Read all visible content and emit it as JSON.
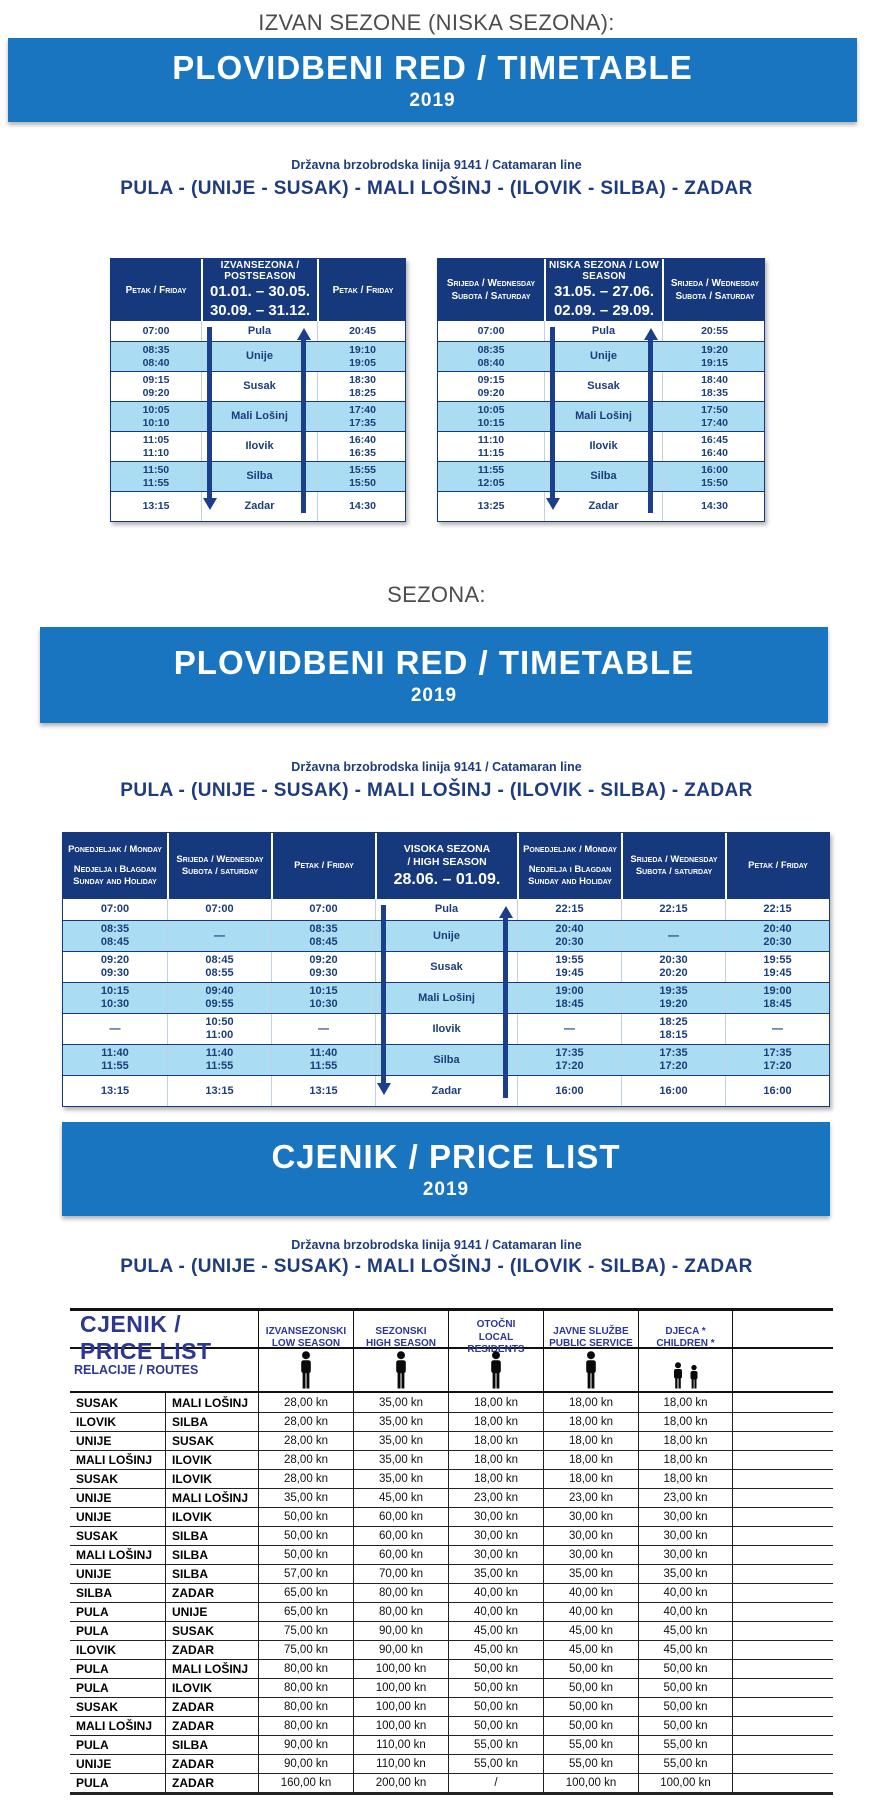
{
  "headings": {
    "offseason": "IZVAN SEZONE (NISKA SEZONA):",
    "season": "SEZONA:"
  },
  "banners": {
    "timetable": "PLOVIDBENI RED / TIMETABLE",
    "pricelist": "CJENIK / PRICE LIST",
    "year": "2019"
  },
  "line": {
    "subtitle": "Državna brzobrodska linija 9141 / Catamaran line",
    "route": "PULA - (UNIJE - SUSAK) - MALI LOŠINJ - (ILOVIK - SILBA) - ZADAR"
  },
  "colors": {
    "banner_blue": "#1a75c0",
    "header_navy": "#16387c",
    "row_lightblue": "#aadcf2",
    "text_navy": "#1b3d7a",
    "pricelist_navy": "#2c3792"
  },
  "offseason_tables": [
    {
      "day_lines": [
        "Petak / Friday"
      ],
      "season_title": "IZVANSEZONA / POSTSEASON",
      "season_dates": [
        "01.01. – 30.05.",
        "30.09. – 31.12."
      ],
      "rows": [
        {
          "dep": [
            "07:00"
          ],
          "station": "Pula",
          "ret": [
            "20:45"
          ]
        },
        {
          "dep": [
            "08:35",
            "08:40"
          ],
          "station": "Unije",
          "ret": [
            "19:10",
            "19:05"
          ]
        },
        {
          "dep": [
            "09:15",
            "09:20"
          ],
          "station": "Susak",
          "ret": [
            "18:30",
            "18:25"
          ]
        },
        {
          "dep": [
            "10:05",
            "10:10"
          ],
          "station": "Mali Lošinj",
          "ret": [
            "17:40",
            "17:35"
          ]
        },
        {
          "dep": [
            "11:05",
            "11:10"
          ],
          "station": "Ilovik",
          "ret": [
            "16:40",
            "16:35"
          ]
        },
        {
          "dep": [
            "11:50",
            "11:55"
          ],
          "station": "Silba",
          "ret": [
            "15:55",
            "15:50"
          ]
        },
        {
          "dep": [
            "13:15"
          ],
          "station": "Zadar",
          "ret": [
            "14:30"
          ]
        }
      ]
    },
    {
      "day_lines": [
        "Srijeda / Wednesday",
        "Subota / Saturday"
      ],
      "season_title": "NISKA SEZONA / LOW SEASON",
      "season_dates": [
        "31.05. – 27.06.",
        "02.09. – 29.09."
      ],
      "rows": [
        {
          "dep": [
            "07:00"
          ],
          "station": "Pula",
          "ret": [
            "20:55"
          ]
        },
        {
          "dep": [
            "08:35",
            "08:40"
          ],
          "station": "Unije",
          "ret": [
            "19:20",
            "19:15"
          ]
        },
        {
          "dep": [
            "09:15",
            "09:20"
          ],
          "station": "Susak",
          "ret": [
            "18:40",
            "18:35"
          ]
        },
        {
          "dep": [
            "10:05",
            "10:15"
          ],
          "station": "Mali Lošinj",
          "ret": [
            "17:50",
            "17:40"
          ]
        },
        {
          "dep": [
            "11:10",
            "11:15"
          ],
          "station": "Ilovik",
          "ret": [
            "16:45",
            "16:40"
          ]
        },
        {
          "dep": [
            "11:55",
            "12:05"
          ],
          "station": "Silba",
          "ret": [
            "16:00",
            "15:50"
          ]
        },
        {
          "dep": [
            "13:25"
          ],
          "station": "Zadar",
          "ret": [
            "14:30"
          ]
        }
      ]
    }
  ],
  "highseason_table": {
    "day_headers": [
      [
        "Ponedjeljak / Monday",
        "Nedjelja i Blagdan",
        "Sunday and Holiday"
      ],
      [
        "Srijeda / Wednesday",
        "Subota / saturday"
      ],
      [
        "Petak / Friday"
      ]
    ],
    "season_title_lines": [
      "VISOKA SEZONA",
      "/ HIGH SEASON"
    ],
    "season_date": "28.06. – 01.09.",
    "rows": [
      {
        "dep": [
          [
            "07:00"
          ],
          [
            "07:00"
          ],
          [
            "07:00"
          ]
        ],
        "station": "Pula",
        "ret": [
          [
            "22:15"
          ],
          [
            "22:15"
          ],
          [
            "22:15"
          ]
        ]
      },
      {
        "dep": [
          [
            "08:35",
            "08:45"
          ],
          [
            "—"
          ],
          [
            "08:35",
            "08:45"
          ]
        ],
        "station": "Unije",
        "ret": [
          [
            "20:40",
            "20:30"
          ],
          [
            "—"
          ],
          [
            "20:40",
            "20:30"
          ]
        ]
      },
      {
        "dep": [
          [
            "09:20",
            "09:30"
          ],
          [
            "08:45",
            "08:55"
          ],
          [
            "09:20",
            "09:30"
          ]
        ],
        "station": "Susak",
        "ret": [
          [
            "19:55",
            "19:45"
          ],
          [
            "20:30",
            "20:20"
          ],
          [
            "19:55",
            "19:45"
          ]
        ]
      },
      {
        "dep": [
          [
            "10:15",
            "10:30"
          ],
          [
            "09:40",
            "09:55"
          ],
          [
            "10:15",
            "10:30"
          ]
        ],
        "station": "Mali Lošinj",
        "ret": [
          [
            "19:00",
            "18:45"
          ],
          [
            "19:35",
            "19:20"
          ],
          [
            "19:00",
            "18:45"
          ]
        ]
      },
      {
        "dep": [
          [
            "—"
          ],
          [
            "10:50",
            "11:00"
          ],
          [
            "—"
          ]
        ],
        "station": "Ilovik",
        "ret": [
          [
            "—"
          ],
          [
            "18:25",
            "18:15"
          ],
          [
            "—"
          ]
        ]
      },
      {
        "dep": [
          [
            "11:40",
            "11:55"
          ],
          [
            "11:40",
            "11:55"
          ],
          [
            "11:40",
            "11:55"
          ]
        ],
        "station": "Silba",
        "ret": [
          [
            "17:35",
            "17:20"
          ],
          [
            "17:35",
            "17:20"
          ],
          [
            "17:35",
            "17:20"
          ]
        ]
      },
      {
        "dep": [
          [
            "13:15"
          ],
          [
            "13:15"
          ],
          [
            "13:15"
          ]
        ],
        "station": "Zadar",
        "ret": [
          [
            "16:00"
          ],
          [
            "16:00"
          ],
          [
            "16:00"
          ]
        ]
      }
    ]
  },
  "pricelist": {
    "title": "CJENIK / PRICE LIST",
    "routes_label": "RELACIJE / ROUTES",
    "columns": [
      [
        "IZVANSEZONSKI",
        "LOW SEASON"
      ],
      [
        "SEZONSKI",
        "HIGH SEASON"
      ],
      [
        "OTOČNI",
        "LOCAL RESIDENTS"
      ],
      [
        "JAVNE SLUŽBE",
        "PUBLIC SERVICE"
      ],
      [
        "DJECA *",
        "CHILDREN *"
      ]
    ],
    "column_icons": [
      "passenger-icon",
      "passenger-icon",
      "passenger-icon",
      "passenger-icon",
      "children-icon"
    ],
    "rows": [
      [
        "SUSAK",
        "MALI LOŠINJ",
        "28,00 kn",
        "35,00 kn",
        "18,00 kn",
        "18,00 kn",
        "18,00 kn"
      ],
      [
        "ILOVIK",
        "SILBA",
        "28,00 kn",
        "35,00 kn",
        "18,00 kn",
        "18,00 kn",
        "18,00 kn"
      ],
      [
        "UNIJE",
        "SUSAK",
        "28,00 kn",
        "35,00 kn",
        "18,00 kn",
        "18,00 kn",
        "18,00 kn"
      ],
      [
        "MALI LOŠINJ",
        "ILOVIK",
        "28,00 kn",
        "35,00 kn",
        "18,00 kn",
        "18,00 kn",
        "18,00 kn"
      ],
      [
        "SUSAK",
        "ILOVIK",
        "28,00 kn",
        "35,00 kn",
        "18,00 kn",
        "18,00 kn",
        "18,00 kn"
      ],
      [
        "UNIJE",
        "MALI LOŠINJ",
        "35,00 kn",
        "45,00 kn",
        "23,00 kn",
        "23,00 kn",
        "23,00 kn"
      ],
      [
        "UNIJE",
        "ILOVIK",
        "50,00 kn",
        "60,00 kn",
        "30,00 kn",
        "30,00 kn",
        "30,00 kn"
      ],
      [
        "SUSAK",
        "SILBA",
        "50,00 kn",
        "60,00 kn",
        "30,00 kn",
        "30,00 kn",
        "30,00 kn"
      ],
      [
        "MALI LOŠINJ",
        "SILBA",
        "50,00 kn",
        "60,00 kn",
        "30,00 kn",
        "30,00 kn",
        "30,00 kn"
      ],
      [
        "UNIJE",
        "SILBA",
        "57,00 kn",
        "70,00 kn",
        "35,00 kn",
        "35,00 kn",
        "35,00 kn"
      ],
      [
        "SILBA",
        "ZADAR",
        "65,00 kn",
        "80,00 kn",
        "40,00 kn",
        "40,00 kn",
        "40,00 kn"
      ],
      [
        "PULA",
        "UNIJE",
        "65,00 kn",
        "80,00 kn",
        "40,00 kn",
        "40,00 kn",
        "40,00 kn"
      ],
      [
        "PULA",
        "SUSAK",
        "75,00 kn",
        "90,00 kn",
        "45,00 kn",
        "45,00 kn",
        "45,00 kn"
      ],
      [
        "ILOVIK",
        "ZADAR",
        "75,00 kn",
        "90,00 kn",
        "45,00 kn",
        "45,00 kn",
        "45,00 kn"
      ],
      [
        "PULA",
        "MALI LOŠINJ",
        "80,00 kn",
        "100,00 kn",
        "50,00 kn",
        "50,00 kn",
        "50,00 kn"
      ],
      [
        "PULA",
        "ILOVIK",
        "80,00 kn",
        "100,00 kn",
        "50,00 kn",
        "50,00 kn",
        "50,00 kn"
      ],
      [
        "SUSAK",
        "ZADAR",
        "80,00 kn",
        "100,00 kn",
        "50,00 kn",
        "50,00 kn",
        "50,00 kn"
      ],
      [
        "MALI LOŠINJ",
        "ZADAR",
        "80,00 kn",
        "100,00 kn",
        "50,00 kn",
        "50,00 kn",
        "50,00 kn"
      ],
      [
        "PULA",
        "SILBA",
        "90,00 kn",
        "110,00 kn",
        "55,00 kn",
        "55,00 kn",
        "55,00 kn"
      ],
      [
        "UNIJE",
        "ZADAR",
        "90,00 kn",
        "110,00 kn",
        "55,00 kn",
        "55,00 kn",
        "55,00 kn"
      ],
      [
        "PULA",
        "ZADAR",
        "160,00 kn",
        "200,00 kn",
        "/",
        "100,00 kn",
        "100,00 kn"
      ]
    ]
  }
}
